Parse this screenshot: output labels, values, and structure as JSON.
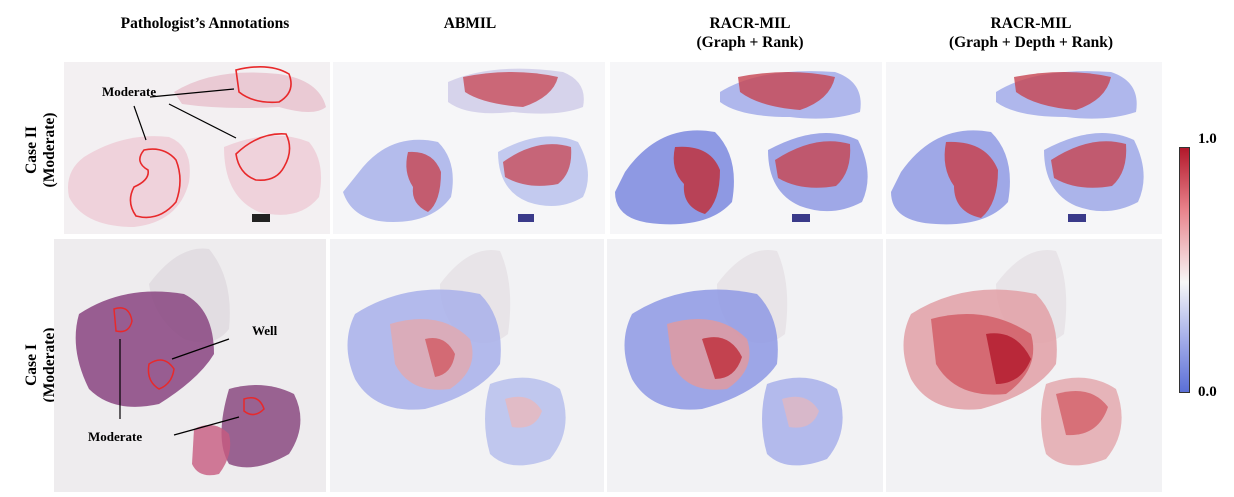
{
  "columns": [
    {
      "label": "Pathologist’s Annotations"
    },
    {
      "label": "ABMIL"
    },
    {
      "label": "RACR-MIL\n(Graph + Rank)"
    },
    {
      "label": "RACR-MIL\n(Graph + Depth + Rank)"
    }
  ],
  "rows": [
    {
      "label": "Case II\n(Moderate)"
    },
    {
      "label": "Case I\n(Moderate)"
    }
  ],
  "annotations": {
    "case2_moderate": "Moderate",
    "case1_well": "Well",
    "case1_moderate": "Moderate"
  },
  "colorbar": {
    "max_label": "1.0",
    "min_label": "0.0",
    "colors": {
      "high": "#b2182b",
      "mid": "#f7f7f7",
      "low": "#5b6fd6"
    }
  },
  "colors": {
    "annotation_outline": "#e8292b",
    "he_stain_light": "#e8c3cf",
    "he_stain_dark": "#7d3b6e"
  }
}
